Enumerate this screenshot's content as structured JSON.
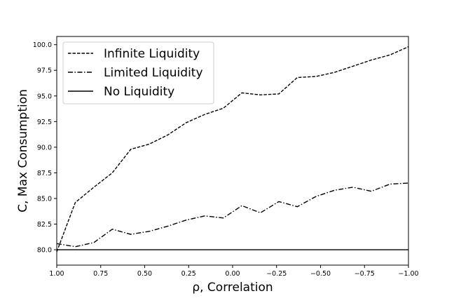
{
  "chart_data": {
    "type": "line",
    "title": "",
    "xlabel": "ρ, Correlation",
    "ylabel": "C, Max Consumption",
    "x_reversed": true,
    "xlim": [
      1.0,
      -1.0
    ],
    "ylim": [
      78.5,
      100.8
    ],
    "xticks": [
      "1.00",
      "0.75",
      "0.50",
      "0.25",
      "0.00",
      "−0.25",
      "−0.50",
      "−0.75",
      "−1.00"
    ],
    "xtick_values": [
      1.0,
      0.75,
      0.5,
      0.25,
      0.0,
      -0.25,
      -0.5,
      -0.75,
      -1.0
    ],
    "yticks": [
      "80.0",
      "82.5",
      "85.0",
      "87.5",
      "90.0",
      "92.5",
      "95.0",
      "97.5",
      "100.0"
    ],
    "ytick_values": [
      80.0,
      82.5,
      85.0,
      87.5,
      90.0,
      92.5,
      95.0,
      97.5,
      100.0
    ],
    "grid": false,
    "legend_position": "top-left",
    "x": [
      1.0,
      0.895,
      0.789,
      0.684,
      0.579,
      0.474,
      0.368,
      0.263,
      0.158,
      0.053,
      -0.053,
      -0.158,
      -0.263,
      -0.368,
      -0.474,
      -0.579,
      -0.684,
      -0.789,
      -0.895,
      -1.0
    ],
    "series": [
      {
        "name": "Infinite Liquidity",
        "style": "dashed",
        "color": "#000000",
        "values": [
          79.8,
          84.6,
          86.1,
          87.5,
          89.8,
          90.3,
          91.2,
          92.4,
          93.2,
          93.8,
          95.3,
          95.1,
          95.2,
          96.8,
          96.9,
          97.3,
          97.9,
          98.5,
          99.0,
          99.8
        ]
      },
      {
        "name": "Limited Liquidity",
        "style": "dashdot",
        "color": "#000000",
        "values": [
          80.6,
          80.3,
          80.7,
          82.0,
          81.5,
          81.8,
          82.3,
          82.9,
          83.3,
          83.1,
          84.3,
          83.6,
          84.7,
          84.2,
          85.2,
          85.8,
          86.1,
          85.7,
          86.4,
          86.5
        ]
      },
      {
        "name": "No Liquidity",
        "style": "solid",
        "color": "#000000",
        "values": [
          80.0,
          80.0,
          80.0,
          80.0,
          80.0,
          80.0,
          80.0,
          80.0,
          80.0,
          80.0,
          80.0,
          80.0,
          80.0,
          80.0,
          80.0,
          80.0,
          80.0,
          80.0,
          80.0,
          80.0
        ]
      }
    ]
  }
}
